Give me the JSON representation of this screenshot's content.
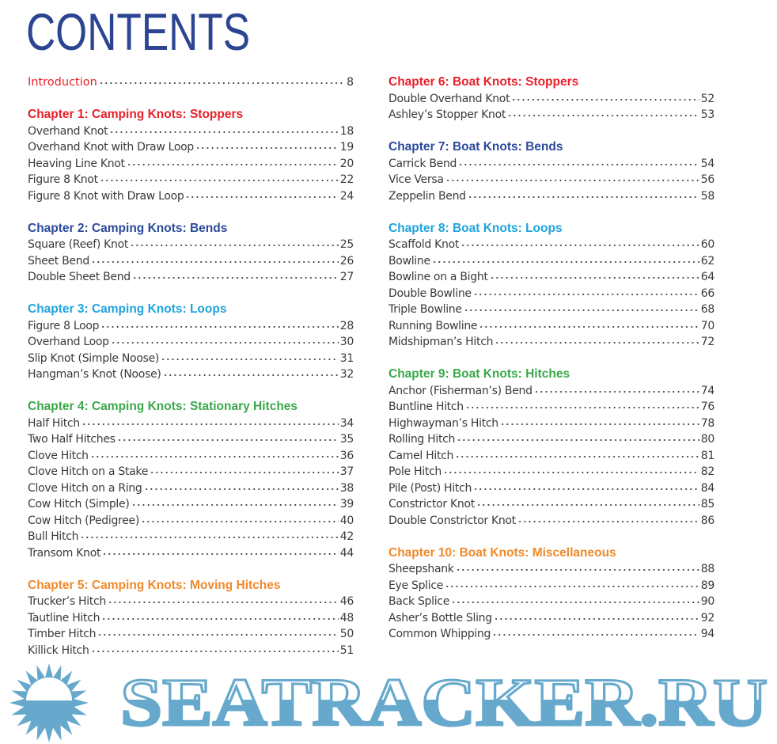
{
  "title": "CONTENTS",
  "colors": {
    "red": "#e8202a",
    "dark_blue": "#2b4a9a",
    "light_blue": "#1ea4dd",
    "green": "#3aa84a",
    "orange": "#f0892a",
    "watermark": "#67a9cd"
  },
  "left_column": [
    {
      "type": "intro",
      "label": "Introduction",
      "page": "8",
      "color": "red"
    },
    {
      "type": "blank"
    },
    {
      "type": "chapter",
      "label": "Chapter 1: Camping Knots: Stoppers",
      "color": "red"
    },
    {
      "type": "entry",
      "label": "Overhand Knot",
      "page": "18"
    },
    {
      "type": "entry",
      "label": "Overhand Knot with Draw Loop",
      "page": "19"
    },
    {
      "type": "entry",
      "label": "Heaving Line Knot",
      "page": "20"
    },
    {
      "type": "entry",
      "label": "Figure 8 Knot",
      "page": "22"
    },
    {
      "type": "entry",
      "label": "Figure 8 Knot with Draw Loop",
      "page": "24"
    },
    {
      "type": "blank"
    },
    {
      "type": "chapter",
      "label": "Chapter 2: Camping Knots: Bends",
      "color": "dark_blue"
    },
    {
      "type": "entry",
      "label": "Square (Reef) Knot",
      "page": "25"
    },
    {
      "type": "entry",
      "label": "Sheet Bend",
      "page": "26"
    },
    {
      "type": "entry",
      "label": "Double Sheet Bend",
      "page": "27"
    },
    {
      "type": "blank"
    },
    {
      "type": "chapter",
      "label": "Chapter 3: Camping Knots: Loops",
      "color": "light_blue"
    },
    {
      "type": "entry",
      "label": "Figure 8 Loop",
      "page": "28"
    },
    {
      "type": "entry",
      "label": "Overhand Loop",
      "page": "30"
    },
    {
      "type": "entry",
      "label": "Slip Knot (Simple Noose)",
      "page": "31"
    },
    {
      "type": "entry",
      "label": "Hangman’s Knot (Noose)",
      "page": "32"
    },
    {
      "type": "blank"
    },
    {
      "type": "chapter",
      "label": "Chapter 4: Camping Knots: Stationary Hitches",
      "color": "green"
    },
    {
      "type": "entry",
      "label": "Half Hitch",
      "page": "34"
    },
    {
      "type": "entry",
      "label": "Two Half Hitches",
      "page": "35"
    },
    {
      "type": "entry",
      "label": "Clove Hitch",
      "page": "36"
    },
    {
      "type": "entry",
      "label": "Clove Hitch on a Stake",
      "page": "37"
    },
    {
      "type": "entry",
      "label": "Clove Hitch on a Ring",
      "page": "38"
    },
    {
      "type": "entry",
      "label": "Cow Hitch (Simple)",
      "page": "39"
    },
    {
      "type": "entry",
      "label": "Cow Hitch (Pedigree)",
      "page": "40"
    },
    {
      "type": "entry",
      "label": "Bull Hitch",
      "page": "42"
    },
    {
      "type": "entry",
      "label": "Transom Knot",
      "page": "44"
    },
    {
      "type": "blank"
    },
    {
      "type": "chapter",
      "label": "Chapter 5: Camping Knots: Moving Hitches",
      "color": "orange"
    },
    {
      "type": "entry",
      "label": "Trucker’s Hitch",
      "page": "46"
    },
    {
      "type": "entry",
      "label": "Tautline Hitch",
      "page": "48"
    },
    {
      "type": "entry",
      "label": "Timber Hitch",
      "page": "50"
    },
    {
      "type": "entry",
      "label": "Killick Hitch",
      "page": "51"
    }
  ],
  "right_column": [
    {
      "type": "chapter",
      "label": "Chapter 6: Boat Knots: Stoppers",
      "color": "red"
    },
    {
      "type": "entry",
      "label": "Double Overhand Knot",
      "page": "52"
    },
    {
      "type": "entry",
      "label": "Ashley’s Stopper Knot",
      "page": "53"
    },
    {
      "type": "blank"
    },
    {
      "type": "chapter",
      "label": "Chapter 7: Boat Knots: Bends",
      "color": "dark_blue"
    },
    {
      "type": "entry",
      "label": "Carrick Bend",
      "page": "54"
    },
    {
      "type": "entry",
      "label": "Vice Versa",
      "page": "56"
    },
    {
      "type": "entry",
      "label": "Zeppelin Bend",
      "page": "58"
    },
    {
      "type": "blank"
    },
    {
      "type": "chapter",
      "label": "Chapter 8: Boat Knots: Loops",
      "color": "light_blue"
    },
    {
      "type": "entry",
      "label": "Scaffold Knot",
      "page": "60"
    },
    {
      "type": "entry",
      "label": "Bowline",
      "page": "62"
    },
    {
      "type": "entry",
      "label": "Bowline on a Bight",
      "page": "64"
    },
    {
      "type": "entry",
      "label": "Double Bowline",
      "page": "66"
    },
    {
      "type": "entry",
      "label": "Triple Bowline",
      "page": "68"
    },
    {
      "type": "entry",
      "label": "Running Bowline",
      "page": "70"
    },
    {
      "type": "entry",
      "label": "Midshipman’s Hitch",
      "page": "72"
    },
    {
      "type": "blank"
    },
    {
      "type": "chapter",
      "label": "Chapter 9: Boat Knots: Hitches",
      "color": "green"
    },
    {
      "type": "entry",
      "label": "Anchor (Fisherman’s) Bend",
      "page": "74"
    },
    {
      "type": "entry",
      "label": "Buntline Hitch",
      "page": "76"
    },
    {
      "type": "entry",
      "label": "Highwayman’s Hitch",
      "page": "78"
    },
    {
      "type": "entry",
      "label": "Rolling Hitch",
      "page": "80"
    },
    {
      "type": "entry",
      "label": "Camel Hitch",
      "page": "81"
    },
    {
      "type": "entry",
      "label": "Pole Hitch",
      "page": "82"
    },
    {
      "type": "entry",
      "label": "Pile (Post) Hitch",
      "page": "84"
    },
    {
      "type": "entry",
      "label": "Constrictor Knot",
      "page": "85"
    },
    {
      "type": "entry",
      "label": "Double Constrictor Knot",
      "page": "86"
    },
    {
      "type": "blank"
    },
    {
      "type": "chapter",
      "label": "Chapter 10: Boat Knots: Miscellaneous",
      "color": "orange"
    },
    {
      "type": "entry",
      "label": "Sheepshank",
      "page": "88"
    },
    {
      "type": "entry",
      "label": "Eye Splice",
      "page": "89"
    },
    {
      "type": "entry",
      "label": "Back Splice",
      "page": "90"
    },
    {
      "type": "entry",
      "label": "Asher’s Bottle Sling",
      "page": "92"
    },
    {
      "type": "entry",
      "label": "Common Whipping",
      "page": "94"
    }
  ],
  "watermark": {
    "text": "SEATRACKER.RU",
    "icon": "sun-icon"
  }
}
